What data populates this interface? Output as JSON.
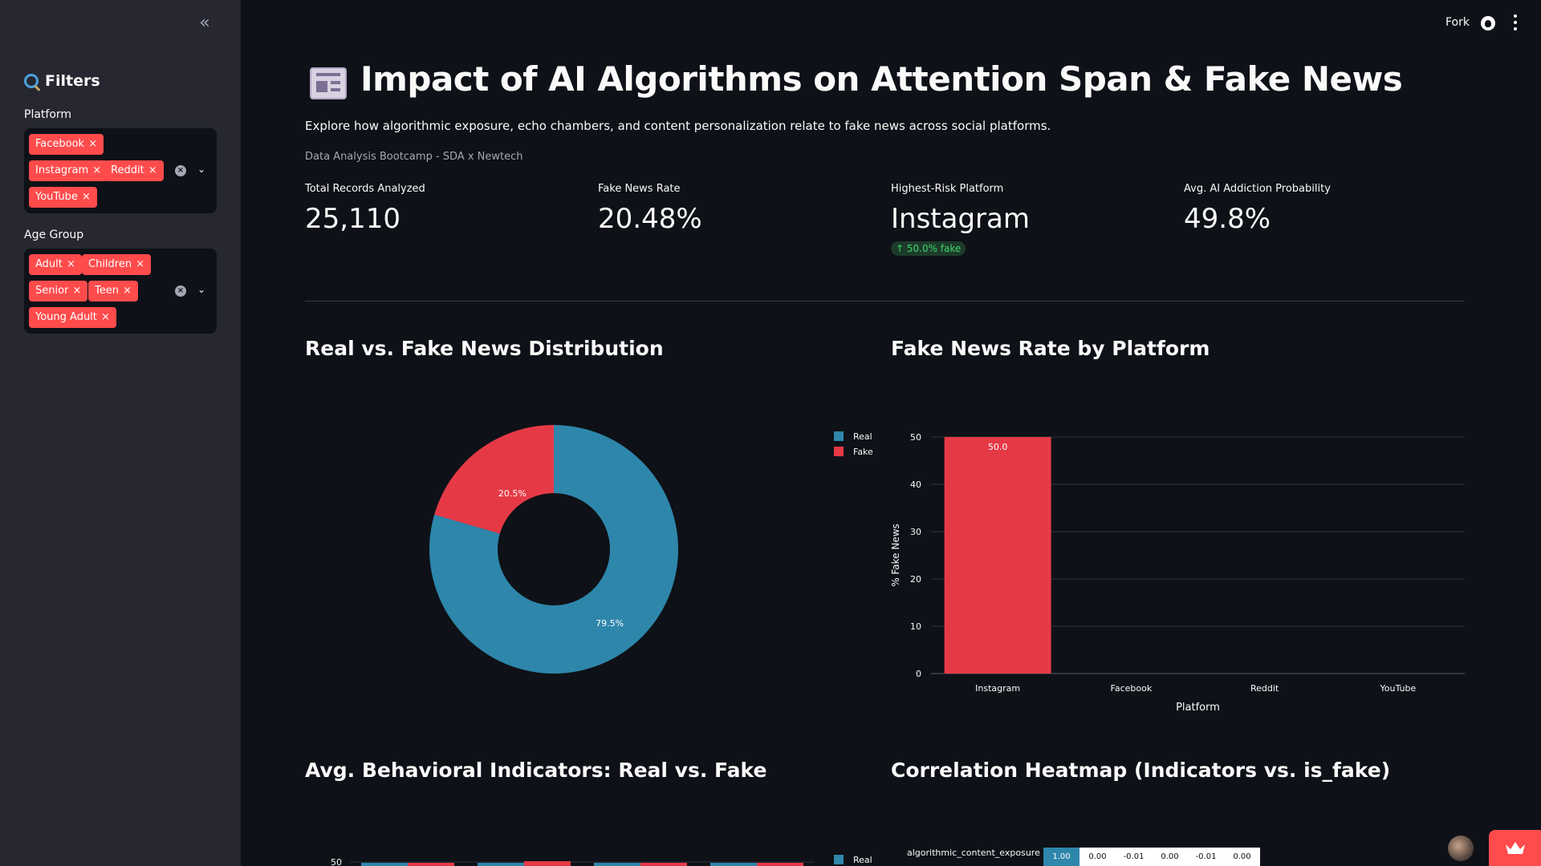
{
  "sidebar": {
    "collapse_glyph": "«",
    "title": "Filters",
    "platform": {
      "label": "Platform",
      "tags": [
        "Facebook",
        "Instagram",
        "Reddit",
        "YouTube"
      ]
    },
    "age_group": {
      "label": "Age Group",
      "tags": [
        "Adult",
        "Children",
        "Senior",
        "Teen",
        "Young Adult"
      ]
    },
    "tag_remove_glyph": "×",
    "clear_glyph": "×",
    "caret_glyph": "⌄"
  },
  "topbar": {
    "fork_label": "Fork",
    "icons": [
      "github-icon",
      "more-vertical-icon"
    ]
  },
  "header": {
    "icon": "newspaper-icon",
    "title": "Impact of AI Algorithms on Attention Span & Fake News",
    "subtitle": "Explore how algorithmic exposure, echo chambers, and content personalization relate to fake news across social platforms.",
    "caption": "Data Analysis Bootcamp - SDA x Newtech"
  },
  "metrics": [
    {
      "label": "Total Records Analyzed",
      "value": "25,110"
    },
    {
      "label": "Fake News Rate",
      "value": "20.48%"
    },
    {
      "label": "Highest-Risk Platform",
      "value": "Instagram",
      "delta": "↑ 50.0% fake"
    },
    {
      "label": "Avg. AI Addiction Probability",
      "value": "49.8%"
    }
  ],
  "sections": {
    "donut_title": "Real vs. Fake News Distribution",
    "bar_title": "Fake News Rate by Platform",
    "behavior_title": "Avg. Behavioral Indicators: Real vs. Fake",
    "heatmap_title": "Correlation Heatmap (Indicators vs. is_fake)"
  },
  "colors": {
    "real": "#2e86ab",
    "fake": "#e63946",
    "accent": "#ff4b4b"
  },
  "chart_data": [
    {
      "type": "pie",
      "title": "Real vs. Fake News Distribution",
      "categories": [
        "Real",
        "Fake"
      ],
      "values": [
        79.5,
        20.5
      ],
      "labels": [
        "79.5%",
        "20.5%"
      ],
      "hole": true,
      "legend": "right"
    },
    {
      "type": "bar",
      "title": "Fake News Rate by Platform",
      "categories": [
        "Instagram",
        "Facebook",
        "Reddit",
        "YouTube"
      ],
      "values": [
        50.0,
        0,
        0,
        0
      ],
      "data_labels": [
        "50.0",
        "",
        "",
        ""
      ],
      "xlabel": "Platform",
      "ylabel": "% Fake News",
      "ylim": [
        0,
        50
      ],
      "yticks": [
        0,
        10,
        20,
        30,
        40,
        50
      ],
      "grid": true
    },
    {
      "type": "bar",
      "title": "Avg. Behavioral Indicators: Real vs. Fake",
      "yticks_visible": [
        50
      ],
      "series": [
        {
          "name": "Real"
        },
        {
          "name": "Fake"
        }
      ],
      "legend": "right"
    },
    {
      "type": "heatmap",
      "title": "Correlation Heatmap (Indicators vs. is_fake)",
      "visible_row": "algorithmic_content_exposure",
      "visible_values": [
        "1.00",
        "0.00",
        "-0.01",
        "0.00",
        "-0.01",
        "0.00"
      ]
    }
  ]
}
